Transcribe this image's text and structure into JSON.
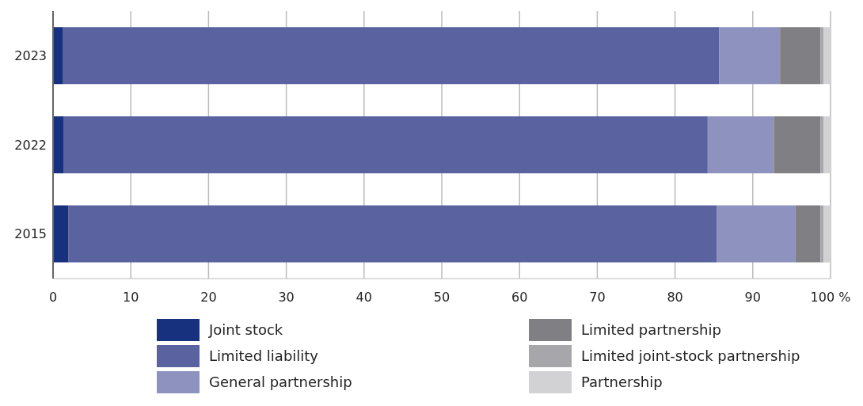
{
  "chart_data": {
    "type": "bar",
    "orientation": "horizontal",
    "stacked": true,
    "categories": [
      "2023",
      "2022",
      "2015"
    ],
    "series": [
      {
        "name": "Joint stock",
        "color": "#17317f",
        "values": [
          1.3,
          1.4,
          2.0
        ]
      },
      {
        "name": "Limited liability",
        "color": "#5b62a0",
        "values": [
          84.4,
          82.8,
          83.4
        ]
      },
      {
        "name": "General partnership",
        "color": "#8e92be",
        "values": [
          7.8,
          8.5,
          10.1
        ]
      },
      {
        "name": "Limited partnership",
        "color": "#808084",
        "values": [
          5.2,
          6.0,
          3.2
        ]
      },
      {
        "name": "Limited joint-stock partnership",
        "color": "#a7a7ab",
        "values": [
          0.4,
          0.4,
          0.4
        ]
      },
      {
        "name": "Partnership",
        "color": "#d2d2d4",
        "values": [
          0.9,
          0.9,
          0.9
        ]
      }
    ],
    "xlim": [
      0,
      100
    ],
    "xticks": [
      0,
      10,
      20,
      30,
      40,
      50,
      60,
      70,
      80,
      90,
      {
        "value": 100,
        "label": "100 %"
      }
    ],
    "grid": "x",
    "legend": "bottom"
  }
}
